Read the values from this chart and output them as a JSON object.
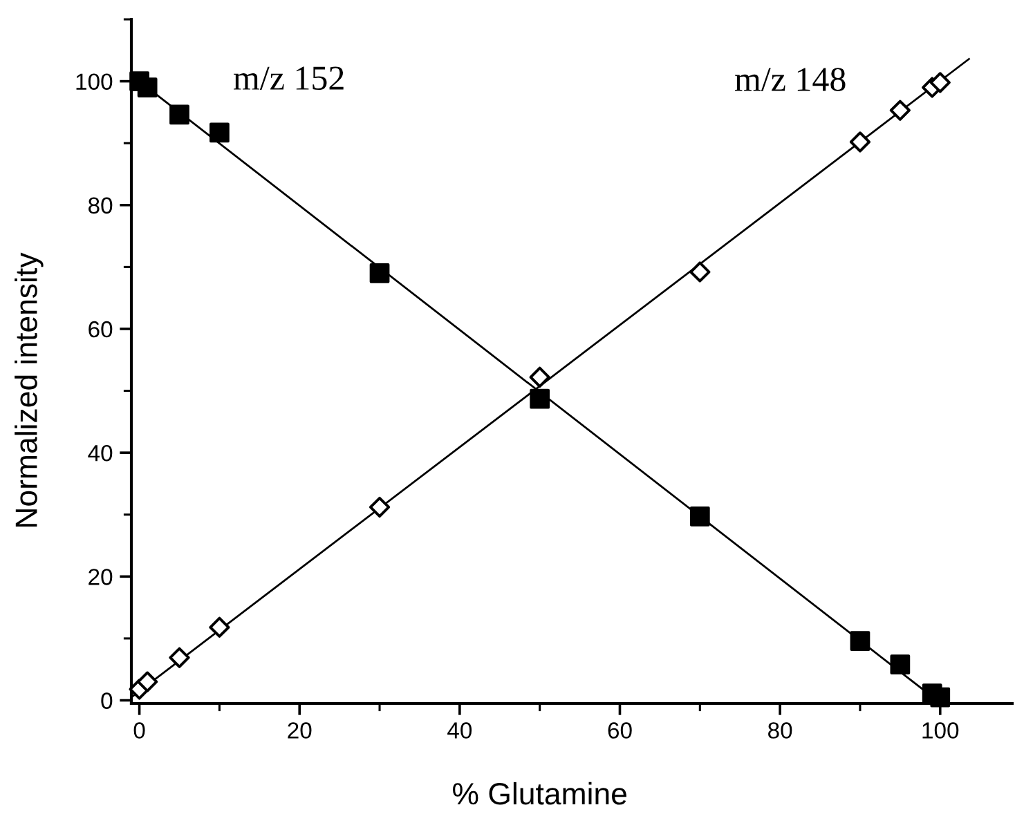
{
  "chart_data": {
    "type": "scatter",
    "xlabel": "% Glutamine",
    "ylabel": "Normalized intensity",
    "xlim": [
      -1,
      109
    ],
    "ylim": [
      -0.5,
      110
    ],
    "xticks": [
      0,
      20,
      40,
      60,
      80,
      100
    ],
    "yticks": [
      0,
      20,
      40,
      60,
      80,
      100
    ],
    "grid": false,
    "legend": false,
    "series": [
      {
        "name": "m/z 152",
        "marker": "square",
        "color": "#000000",
        "x": [
          0,
          1,
          5,
          10,
          30,
          50,
          70,
          90,
          95,
          99,
          100
        ],
        "values": [
          100,
          99,
          94.6,
          91.7,
          69.0,
          48.7,
          29.7,
          9.6,
          5.8,
          1.1,
          0.5
        ]
      },
      {
        "name": "m/z 148",
        "marker": "diamond",
        "color": "#000000",
        "x": [
          0,
          1,
          5,
          10,
          30,
          50,
          70,
          90,
          95,
          99,
          100
        ],
        "values": [
          1.8,
          3.0,
          6.9,
          11.8,
          31.2,
          52.2,
          69.2,
          90.2,
          95.3,
          99.0,
          99.8
        ]
      },
      {
        "type": "line",
        "marker": "none",
        "line_style": "solid",
        "color": "#000000",
        "x": [
          -1,
          100
        ],
        "values": [
          101.0,
          -0.4
        ]
      },
      {
        "type": "line",
        "marker": "none",
        "line_style": "solid",
        "color": "#000000",
        "x": [
          -1,
          103.6
        ],
        "values": [
          0.5,
          103.6
        ]
      }
    ]
  }
}
